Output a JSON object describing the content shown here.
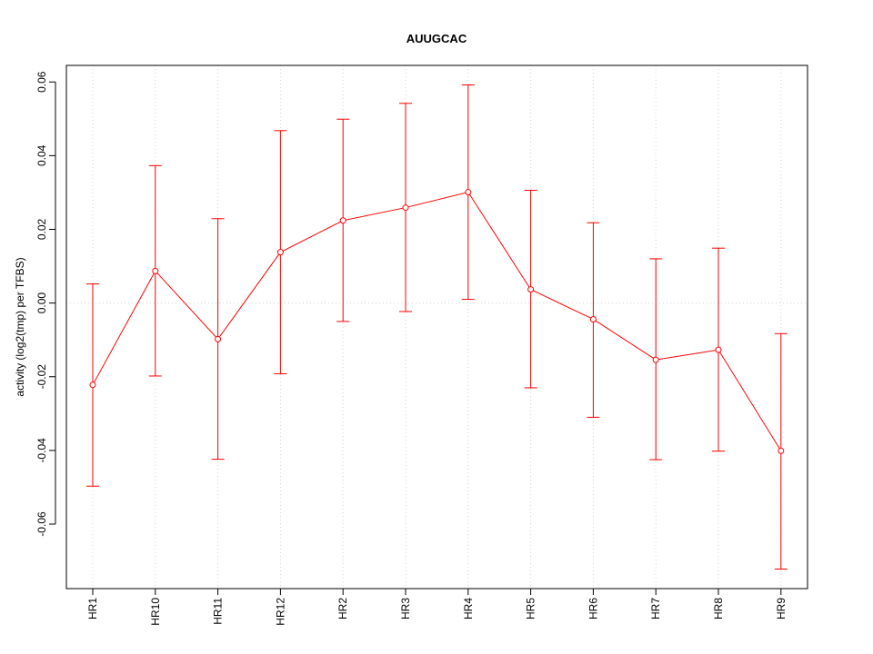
{
  "chart_data": {
    "type": "line",
    "title": "AUUGCAC",
    "xlabel": "",
    "ylabel": "activity (log2(tmp) per TFBS)",
    "categories": [
      "HR1",
      "HR10",
      "HR11",
      "HR12",
      "HR2",
      "HR3",
      "HR4",
      "HR5",
      "HR6",
      "HR7",
      "HR8",
      "HR9"
    ],
    "series": [
      {
        "values": [
          -0.0222,
          0.0087,
          -0.0098,
          0.0138,
          0.0224,
          0.0259,
          0.0301,
          0.0037,
          -0.0044,
          -0.0154,
          -0.0127,
          -0.0401
        ],
        "lower": [
          -0.0497,
          -0.0198,
          -0.0424,
          -0.0192,
          -0.005,
          -0.0023,
          0.001,
          -0.023,
          -0.031,
          -0.0425,
          -0.0402,
          -0.0722
        ],
        "upper": [
          0.0052,
          0.0373,
          0.0229,
          0.0468,
          0.0499,
          0.0542,
          0.0592,
          0.0306,
          0.0218,
          0.012,
          0.0149,
          -0.0083
        ]
      }
    ],
    "yticks": [
      -0.06,
      -0.04,
      -0.02,
      0.0,
      0.02,
      0.04,
      0.06
    ],
    "ytick_labels": [
      "-0.06",
      "-0.04",
      "-0.02",
      "0.00",
      "0.02",
      "0.04",
      "0.06"
    ],
    "ylim": [
      -0.0775,
      0.0645
    ],
    "grid": true,
    "colors": {
      "series": "#ff0000",
      "grid": "#d3d3d3",
      "axis": "#000000"
    }
  }
}
